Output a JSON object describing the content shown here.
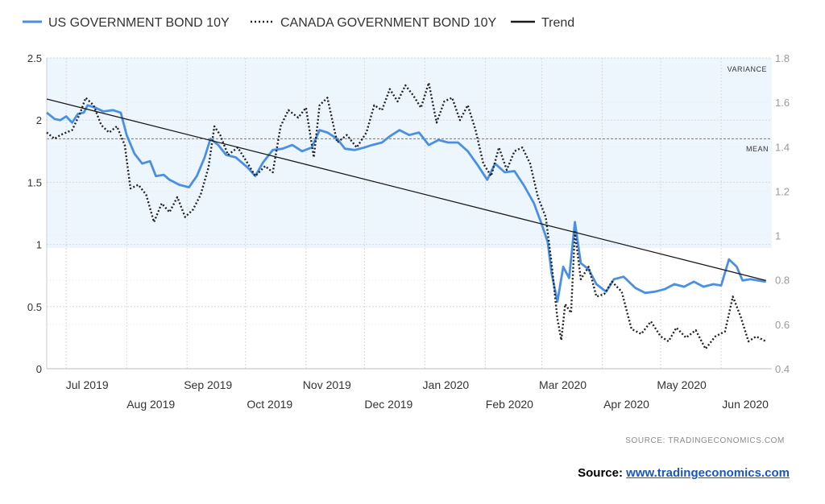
{
  "colors": {
    "us": "#4a90e2",
    "canada": "#222222",
    "trend": "#1a1a1a",
    "band": "#eef6fd",
    "grid": "#d8d8d8",
    "link": "#1a55c4"
  },
  "legend": [
    {
      "label": "US GOVERNMENT BOND 10Y",
      "style": "solid-blue"
    },
    {
      "label": "CANADA GOVERNMENT BOND 10Y",
      "style": "dotted-black"
    },
    {
      "label": "Trend",
      "style": "solid-black"
    }
  ],
  "annotations": {
    "variance": "VARIANCE",
    "mean": "MEAN"
  },
  "source_small": "SOURCE:  TRADINGECONOMICS.COM",
  "source_line": {
    "prefix": "Source:",
    "link": "www.tradingeconomics.com"
  },
  "chart_data": {
    "type": "line",
    "x_range": [
      "2019-06-21",
      "2020-06-27"
    ],
    "y_left": {
      "range": [
        0,
        2.5
      ],
      "ticks": [
        "0",
        "0.5",
        "1",
        "1.5",
        "2",
        "2.5"
      ]
    },
    "y_right": {
      "range": [
        0.4,
        1.8
      ],
      "ticks": [
        "0.4",
        "0.6",
        "0.8",
        "1",
        "1.2",
        "1.4",
        "1.6",
        "1.8"
      ]
    },
    "x_ticks_top": [
      {
        "label": "Jul 2019",
        "date": "2019-07-01"
      },
      {
        "label": "Sep 2019",
        "date": "2019-09-01"
      },
      {
        "label": "Nov 2019",
        "date": "2019-11-01"
      },
      {
        "label": "Jan 2020",
        "date": "2020-01-01"
      },
      {
        "label": "Mar 2020",
        "date": "2020-03-01"
      },
      {
        "label": "May 2020",
        "date": "2020-05-01"
      }
    ],
    "x_ticks_bottom": [
      {
        "label": "Aug 2019",
        "date": "2019-08-01"
      },
      {
        "label": "Oct 2019",
        "date": "2019-10-01"
      },
      {
        "label": "Dec 2019",
        "date": "2019-12-01"
      },
      {
        "label": "Feb 2020",
        "date": "2020-02-01"
      },
      {
        "label": "Apr 2020",
        "date": "2020-04-01"
      },
      {
        "label": "Jun 2020",
        "date": "2020-06-01"
      }
    ],
    "mean_left": 1.85,
    "variance_band_left": [
      0.97,
      2.5
    ],
    "grid": true,
    "legend_position": "top",
    "series": [
      {
        "name": "US GOVERNMENT BOND 10Y",
        "axis": "left",
        "points": [
          [
            "2019-06-21",
            2.06
          ],
          [
            "2019-06-25",
            2.01
          ],
          [
            "2019-06-28",
            2.0
          ],
          [
            "2019-07-01",
            2.03
          ],
          [
            "2019-07-04",
            1.98
          ],
          [
            "2019-07-07",
            2.05
          ],
          [
            "2019-07-10",
            2.06
          ],
          [
            "2019-07-12",
            2.12
          ],
          [
            "2019-07-16",
            2.1
          ],
          [
            "2019-07-20",
            2.07
          ],
          [
            "2019-07-25",
            2.08
          ],
          [
            "2019-07-29",
            2.06
          ],
          [
            "2019-08-01",
            1.88
          ],
          [
            "2019-08-05",
            1.73
          ],
          [
            "2019-08-09",
            1.65
          ],
          [
            "2019-08-13",
            1.67
          ],
          [
            "2019-08-16",
            1.55
          ],
          [
            "2019-08-20",
            1.56
          ],
          [
            "2019-08-23",
            1.52
          ],
          [
            "2019-08-28",
            1.48
          ],
          [
            "2019-09-02",
            1.46
          ],
          [
            "2019-09-06",
            1.55
          ],
          [
            "2019-09-10",
            1.7
          ],
          [
            "2019-09-13",
            1.85
          ],
          [
            "2019-09-17",
            1.8
          ],
          [
            "2019-09-21",
            1.72
          ],
          [
            "2019-09-26",
            1.7
          ],
          [
            "2019-10-02",
            1.62
          ],
          [
            "2019-10-06",
            1.55
          ],
          [
            "2019-10-10",
            1.66
          ],
          [
            "2019-10-15",
            1.76
          ],
          [
            "2019-10-20",
            1.77
          ],
          [
            "2019-10-25",
            1.8
          ],
          [
            "2019-10-30",
            1.75
          ],
          [
            "2019-11-04",
            1.78
          ],
          [
            "2019-11-08",
            1.92
          ],
          [
            "2019-11-12",
            1.9
          ],
          [
            "2019-11-17",
            1.85
          ],
          [
            "2019-11-21",
            1.77
          ],
          [
            "2019-11-26",
            1.76
          ],
          [
            "2019-12-01",
            1.78
          ],
          [
            "2019-12-05",
            1.8
          ],
          [
            "2019-12-10",
            1.82
          ],
          [
            "2019-12-14",
            1.87
          ],
          [
            "2019-12-19",
            1.92
          ],
          [
            "2019-12-24",
            1.88
          ],
          [
            "2019-12-29",
            1.9
          ],
          [
            "2020-01-03",
            1.8
          ],
          [
            "2020-01-08",
            1.84
          ],
          [
            "2020-01-13",
            1.82
          ],
          [
            "2020-01-18",
            1.82
          ],
          [
            "2020-01-23",
            1.75
          ],
          [
            "2020-01-28",
            1.64
          ],
          [
            "2020-02-02",
            1.52
          ],
          [
            "2020-02-06",
            1.65
          ],
          [
            "2020-02-11",
            1.58
          ],
          [
            "2020-02-16",
            1.59
          ],
          [
            "2020-02-21",
            1.47
          ],
          [
            "2020-02-26",
            1.33
          ],
          [
            "2020-03-01",
            1.16
          ],
          [
            "2020-03-04",
            1.02
          ],
          [
            "2020-03-06",
            0.77
          ],
          [
            "2020-03-09",
            0.54
          ],
          [
            "2020-03-12",
            0.82
          ],
          [
            "2020-03-15",
            0.73
          ],
          [
            "2020-03-18",
            1.18
          ],
          [
            "2020-03-21",
            0.85
          ],
          [
            "2020-03-25",
            0.8
          ],
          [
            "2020-03-29",
            0.68
          ],
          [
            "2020-04-03",
            0.62
          ],
          [
            "2020-04-07",
            0.72
          ],
          [
            "2020-04-12",
            0.74
          ],
          [
            "2020-04-18",
            0.65
          ],
          [
            "2020-04-23",
            0.61
          ],
          [
            "2020-04-28",
            0.62
          ],
          [
            "2020-05-03",
            0.64
          ],
          [
            "2020-05-08",
            0.68
          ],
          [
            "2020-05-13",
            0.66
          ],
          [
            "2020-05-18",
            0.7
          ],
          [
            "2020-05-23",
            0.66
          ],
          [
            "2020-05-28",
            0.68
          ],
          [
            "2020-06-01",
            0.67
          ],
          [
            "2020-06-05",
            0.88
          ],
          [
            "2020-06-09",
            0.82
          ],
          [
            "2020-06-12",
            0.71
          ],
          [
            "2020-06-16",
            0.72
          ],
          [
            "2020-06-20",
            0.71
          ],
          [
            "2020-06-24",
            0.7
          ]
        ]
      },
      {
        "name": "CANADA GOVERNMENT BOND 10Y",
        "axis": "left",
        "points": [
          [
            "2019-06-21",
            1.9
          ],
          [
            "2019-06-25",
            1.85
          ],
          [
            "2019-06-28",
            1.88
          ],
          [
            "2019-07-01",
            1.9
          ],
          [
            "2019-07-04",
            1.92
          ],
          [
            "2019-07-08",
            2.05
          ],
          [
            "2019-07-11",
            2.18
          ],
          [
            "2019-07-15",
            2.12
          ],
          [
            "2019-07-19",
            1.96
          ],
          [
            "2019-07-23",
            1.9
          ],
          [
            "2019-07-27",
            1.95
          ],
          [
            "2019-07-31",
            1.8
          ],
          [
            "2019-08-03",
            1.45
          ],
          [
            "2019-08-07",
            1.48
          ],
          [
            "2019-08-11",
            1.4
          ],
          [
            "2019-08-15",
            1.18
          ],
          [
            "2019-08-19",
            1.33
          ],
          [
            "2019-08-23",
            1.26
          ],
          [
            "2019-08-27",
            1.38
          ],
          [
            "2019-08-31",
            1.22
          ],
          [
            "2019-09-04",
            1.28
          ],
          [
            "2019-09-08",
            1.4
          ],
          [
            "2019-09-12",
            1.62
          ],
          [
            "2019-09-15",
            1.95
          ],
          [
            "2019-09-18",
            1.88
          ],
          [
            "2019-09-22",
            1.72
          ],
          [
            "2019-09-27",
            1.78
          ],
          [
            "2019-10-01",
            1.68
          ],
          [
            "2019-10-06",
            1.55
          ],
          [
            "2019-10-11",
            1.63
          ],
          [
            "2019-10-15",
            1.58
          ],
          [
            "2019-10-19",
            1.95
          ],
          [
            "2019-10-23",
            2.08
          ],
          [
            "2019-10-28",
            2.02
          ],
          [
            "2019-11-01",
            2.1
          ],
          [
            "2019-11-05",
            1.7
          ],
          [
            "2019-11-08",
            2.12
          ],
          [
            "2019-11-12",
            2.18
          ],
          [
            "2019-11-17",
            1.82
          ],
          [
            "2019-11-22",
            1.88
          ],
          [
            "2019-11-27",
            1.78
          ],
          [
            "2019-12-02",
            1.9
          ],
          [
            "2019-12-06",
            2.12
          ],
          [
            "2019-12-10",
            2.08
          ],
          [
            "2019-12-14",
            2.25
          ],
          [
            "2019-12-18",
            2.15
          ],
          [
            "2019-12-22",
            2.28
          ],
          [
            "2019-12-26",
            2.2
          ],
          [
            "2019-12-30",
            2.1
          ],
          [
            "2020-01-03",
            2.3
          ],
          [
            "2020-01-07",
            1.98
          ],
          [
            "2020-01-11",
            2.15
          ],
          [
            "2020-01-15",
            2.18
          ],
          [
            "2020-01-19",
            2.0
          ],
          [
            "2020-01-23",
            2.12
          ],
          [
            "2020-01-27",
            1.92
          ],
          [
            "2020-01-31",
            1.65
          ],
          [
            "2020-02-04",
            1.55
          ],
          [
            "2020-02-08",
            1.78
          ],
          [
            "2020-02-12",
            1.6
          ],
          [
            "2020-02-16",
            1.75
          ],
          [
            "2020-02-20",
            1.78
          ],
          [
            "2020-02-24",
            1.65
          ],
          [
            "2020-02-28",
            1.38
          ],
          [
            "2020-03-03",
            1.22
          ],
          [
            "2020-03-06",
            0.85
          ],
          [
            "2020-03-09",
            0.4
          ],
          [
            "2020-03-11",
            0.23
          ],
          [
            "2020-03-13",
            0.52
          ],
          [
            "2020-03-16",
            0.45
          ],
          [
            "2020-03-18",
            1.1
          ],
          [
            "2020-03-21",
            0.72
          ],
          [
            "2020-03-25",
            0.82
          ],
          [
            "2020-03-29",
            0.58
          ],
          [
            "2020-04-02",
            0.6
          ],
          [
            "2020-04-06",
            0.7
          ],
          [
            "2020-04-11",
            0.62
          ],
          [
            "2020-04-16",
            0.32
          ],
          [
            "2020-04-21",
            0.28
          ],
          [
            "2020-04-26",
            0.38
          ],
          [
            "2020-05-01",
            0.26
          ],
          [
            "2020-05-05",
            0.22
          ],
          [
            "2020-05-09",
            0.33
          ],
          [
            "2020-05-14",
            0.25
          ],
          [
            "2020-05-19",
            0.31
          ],
          [
            "2020-05-24",
            0.16
          ],
          [
            "2020-05-29",
            0.26
          ],
          [
            "2020-06-03",
            0.3
          ],
          [
            "2020-06-07",
            0.58
          ],
          [
            "2020-06-11",
            0.42
          ],
          [
            "2020-06-15",
            0.22
          ],
          [
            "2020-06-19",
            0.26
          ],
          [
            "2020-06-24",
            0.22
          ]
        ]
      },
      {
        "name": "Trend",
        "axis": "left",
        "points": [
          [
            "2019-06-21",
            2.17
          ],
          [
            "2020-06-24",
            0.71
          ]
        ]
      }
    ]
  }
}
